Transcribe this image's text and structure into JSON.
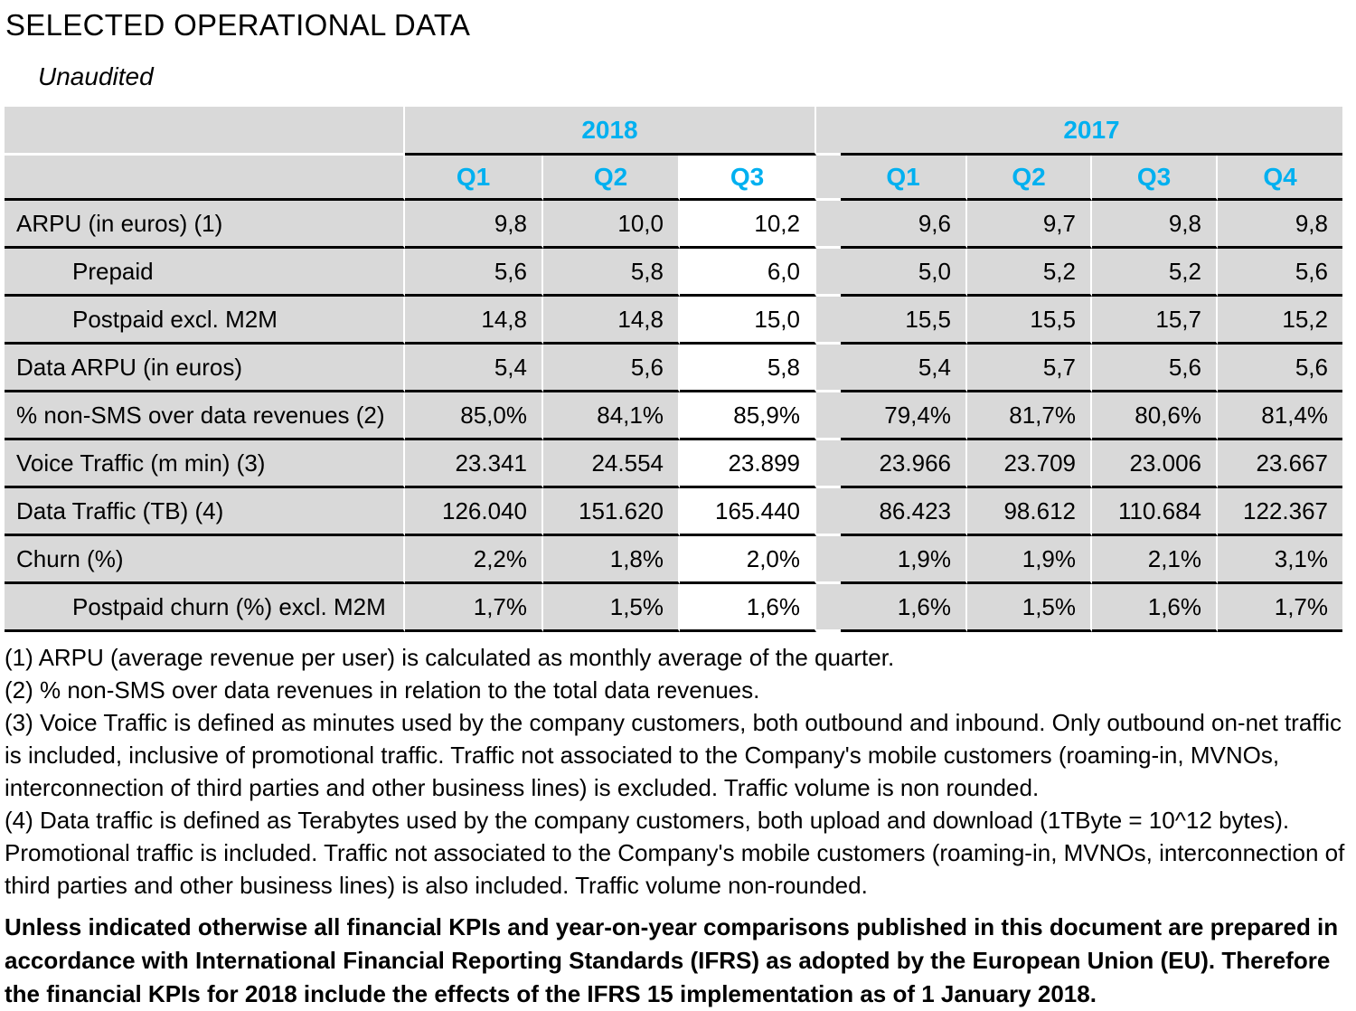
{
  "header": {
    "title": "SELECTED OPERATIONAL DATA",
    "subtitle": "Unaudited"
  },
  "table": {
    "years": [
      {
        "label": "2018",
        "quarters": [
          "Q1",
          "Q2",
          "Q3"
        ]
      },
      {
        "label": "2017",
        "quarters": [
          "Q1",
          "Q2",
          "Q3",
          "Q4"
        ]
      }
    ],
    "rows": [
      {
        "label": "ARPU (in euros) (1)",
        "indent": false,
        "y2018": [
          "9,8",
          "10,0",
          "10,2"
        ],
        "y2017": [
          "9,6",
          "9,7",
          "9,8",
          "9,8"
        ]
      },
      {
        "label": "Prepaid",
        "indent": true,
        "y2018": [
          "5,6",
          "5,8",
          "6,0"
        ],
        "y2017": [
          "5,0",
          "5,2",
          "5,2",
          "5,6"
        ]
      },
      {
        "label": "Postpaid excl. M2M",
        "indent": true,
        "y2018": [
          "14,8",
          "14,8",
          "15,0"
        ],
        "y2017": [
          "15,5",
          "15,5",
          "15,7",
          "15,2"
        ]
      },
      {
        "label": "Data ARPU (in euros)",
        "indent": false,
        "y2018": [
          "5,4",
          "5,6",
          "5,8"
        ],
        "y2017": [
          "5,4",
          "5,7",
          "5,6",
          "5,6"
        ]
      },
      {
        "label": "% non-SMS over data revenues (2)",
        "indent": false,
        "y2018": [
          "85,0%",
          "84,1%",
          "85,9%"
        ],
        "y2017": [
          "79,4%",
          "81,7%",
          "80,6%",
          "81,4%"
        ]
      },
      {
        "label": "Voice Traffic (m min) (3)",
        "indent": false,
        "y2018": [
          "23.341",
          "24.554",
          "23.899"
        ],
        "y2017": [
          "23.966",
          "23.709",
          "23.006",
          "23.667"
        ]
      },
      {
        "label": "Data Traffic (TB) (4)",
        "indent": false,
        "y2018": [
          "126.040",
          "151.620",
          "165.440"
        ],
        "y2017": [
          "86.423",
          "98.612",
          "110.684",
          "122.367"
        ]
      },
      {
        "label": "Churn (%)",
        "indent": false,
        "y2018": [
          "2,2%",
          "1,8%",
          "2,0%"
        ],
        "y2017": [
          "1,9%",
          "1,9%",
          "2,1%",
          "3,1%"
        ]
      },
      {
        "label": "Postpaid churn (%) excl. M2M",
        "indent": true,
        "y2018": [
          "1,7%",
          "1,5%",
          "1,6%"
        ],
        "y2017": [
          "1,6%",
          "1,5%",
          "1,6%",
          "1,7%"
        ]
      }
    ]
  },
  "footnotes": [
    "(1) ARPU (average revenue per user) is calculated as monthly average of the quarter.",
    "(2) % non-SMS over data revenues in relation to the total data revenues.",
    "(3) Voice Traffic is defined as minutes used by the company customers, both outbound and inbound. Only outbound on-net traffic is included, inclusive of promotional traffic. Traffic not associated to the Company's mobile customers (roaming-in, MVNOs, interconnection of third parties and other business lines) is excluded. Traffic volume is non rounded.",
    "(4) Data traffic is defined as Terabytes used by the company customers, both upload and download (1TByte = 10^12 bytes). Promotional traffic is included. Traffic not associated to the Company's mobile customers (roaming-in, MVNOs, interconnection of third parties and other business lines) is also included. Traffic volume non-rounded."
  ],
  "disclaimer": "Unless indicated otherwise all financial KPIs and year-on-year comparisons published in this document are prepared in accordance with International Financial Reporting Standards (IFRS) as adopted by the European Union (EU). Therefore the financial KPIs for 2018 include the effects of the IFRS 15 implementation as of 1 January 2018.",
  "colors": {
    "accent_cyan": "#00b0f0",
    "table_grey": "#d9d9d9",
    "highlight_white": "#ffffff",
    "rule_black": "#000000"
  }
}
